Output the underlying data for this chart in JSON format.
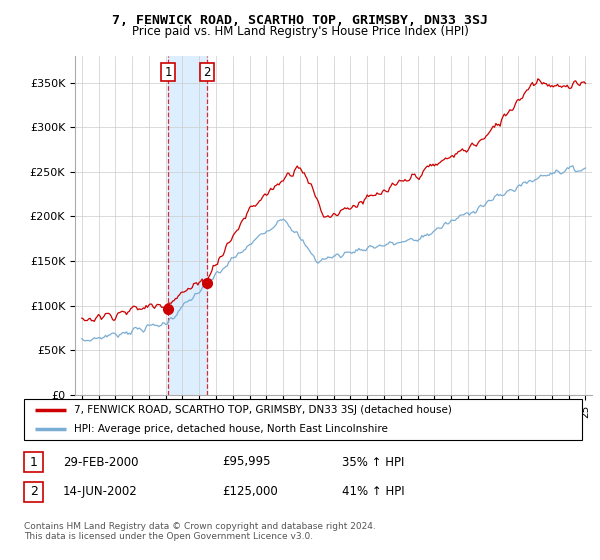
{
  "title": "7, FENWICK ROAD, SCARTHO TOP, GRIMSBY, DN33 3SJ",
  "subtitle": "Price paid vs. HM Land Registry's House Price Index (HPI)",
  "legend_line1": "7, FENWICK ROAD, SCARTHO TOP, GRIMSBY, DN33 3SJ (detached house)",
  "legend_line2": "HPI: Average price, detached house, North East Lincolnshire",
  "sale1_date": "29-FEB-2000",
  "sale1_price": "£95,995",
  "sale1_hpi": "35% ↑ HPI",
  "sale2_date": "14-JUN-2002",
  "sale2_price": "£125,000",
  "sale2_hpi": "41% ↑ HPI",
  "footer": "Contains HM Land Registry data © Crown copyright and database right 2024.\nThis data is licensed under the Open Government Licence v3.0.",
  "red_color": "#cc0000",
  "blue_color": "#7aadd4",
  "highlight_color": "#ddeeff",
  "grid_color": "#cccccc",
  "ylim": [
    0,
    380000
  ],
  "yticks": [
    0,
    50000,
    100000,
    150000,
    200000,
    250000,
    300000,
    350000
  ],
  "sale1_x": 2000.15,
  "sale1_y": 95995,
  "sale2_x": 2002.45,
  "sale2_y": 125000,
  "xmin": 1994.6,
  "xmax": 2025.4
}
